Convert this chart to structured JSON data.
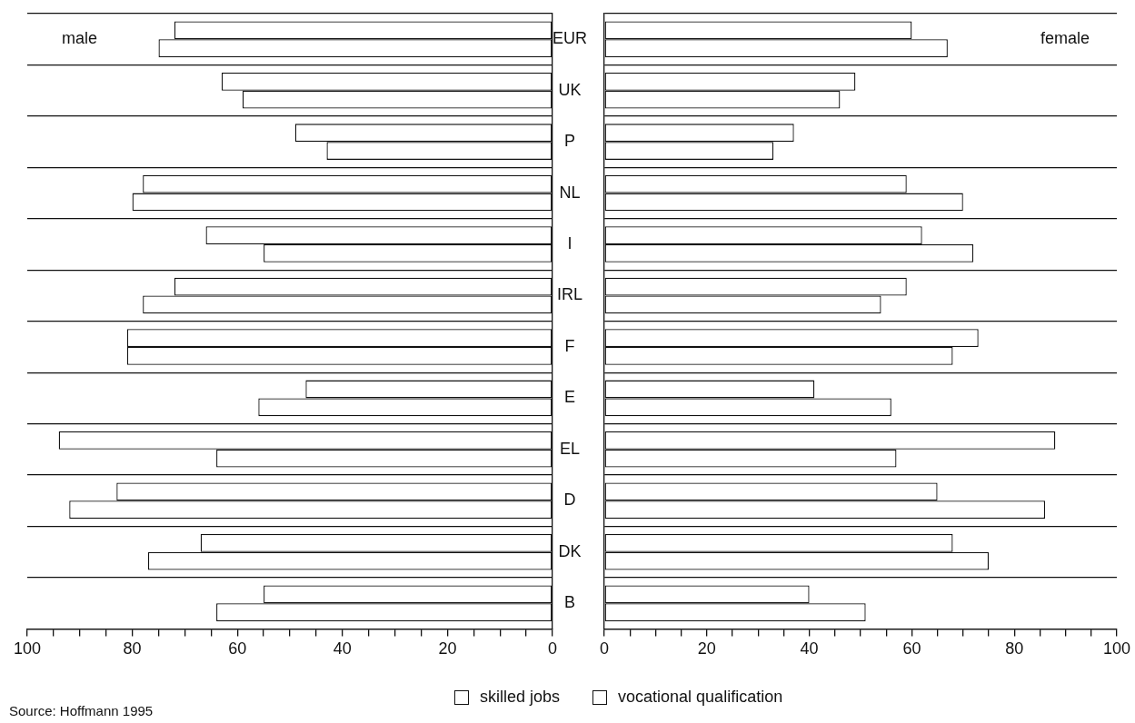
{
  "chart_data": [
    {
      "type": "bar",
      "orientation": "horizontal",
      "title": "male",
      "categories": [
        "EUR",
        "UK",
        "P",
        "NL",
        "I",
        "IRL",
        "F",
        "E",
        "EL",
        "D",
        "DK",
        "B"
      ],
      "series": [
        {
          "name": "skilled jobs",
          "color": "#ffffff",
          "values": [
            72,
            63,
            49,
            78,
            66,
            72,
            81,
            47,
            94,
            83,
            67,
            55
          ]
        },
        {
          "name": "vocational qualification",
          "color": "#ffffff",
          "values": [
            75,
            59,
            43,
            80,
            55,
            78,
            81,
            56,
            64,
            92,
            77,
            64
          ]
        }
      ],
      "xlim": [
        100,
        0
      ],
      "xticks": [
        100,
        {
          "value": 95,
          "label": null
        },
        {
          "value": 90,
          "label": null
        },
        {
          "value": 85,
          "label": null
        },
        80,
        {
          "value": 75,
          "label": null
        },
        {
          "value": 70,
          "label": null
        },
        {
          "value": 65,
          "label": null
        },
        60,
        {
          "value": 55,
          "label": null
        },
        {
          "value": 50,
          "label": null
        },
        {
          "value": 45,
          "label": null
        },
        40,
        {
          "value": 35,
          "label": null
        },
        {
          "value": 30,
          "label": null
        },
        {
          "value": 25,
          "label": null
        },
        20,
        {
          "value": 15,
          "label": null
        },
        {
          "value": 10,
          "label": null
        },
        {
          "value": 5,
          "label": null
        },
        0
      ],
      "grid": "y",
      "legend": "bottom",
      "annotations": [
        "Source: Hoffmann 1995"
      ]
    },
    {
      "type": "bar",
      "orientation": "horizontal",
      "title": "female",
      "categories": [
        null,
        null,
        null,
        null,
        null,
        null,
        null,
        null,
        null,
        null,
        null,
        null
      ],
      "series": [
        {
          "color": "#ffffff",
          "values": [
            60,
            49,
            37,
            59,
            62,
            59,
            73,
            41,
            88,
            65,
            68,
            40
          ]
        },
        {
          "color": "#ffffff",
          "values": [
            67,
            46,
            33,
            70,
            72,
            54,
            68,
            56,
            57,
            86,
            75,
            51
          ]
        }
      ],
      "xlim": [
        0,
        100
      ],
      "xticks": [
        0,
        {
          "value": 5,
          "label": null
        },
        {
          "value": 10,
          "label": null
        },
        {
          "value": 15,
          "label": null
        },
        20,
        {
          "value": 25,
          "label": null
        },
        {
          "value": 30,
          "label": null
        },
        {
          "value": 35,
          "label": null
        },
        40,
        {
          "value": 45,
          "label": null
        },
        {
          "value": 50,
          "label": null
        },
        {
          "value": 55,
          "label": null
        },
        60,
        {
          "value": 65,
          "label": null
        },
        {
          "value": 70,
          "label": null
        },
        {
          "value": 75,
          "label": null
        },
        80,
        {
          "value": 85,
          "label": null
        },
        {
          "value": 90,
          "label": null
        },
        {
          "value": 95,
          "label": null
        },
        100
      ],
      "grid": "y",
      "tick_labels": "x"
    }
  ]
}
